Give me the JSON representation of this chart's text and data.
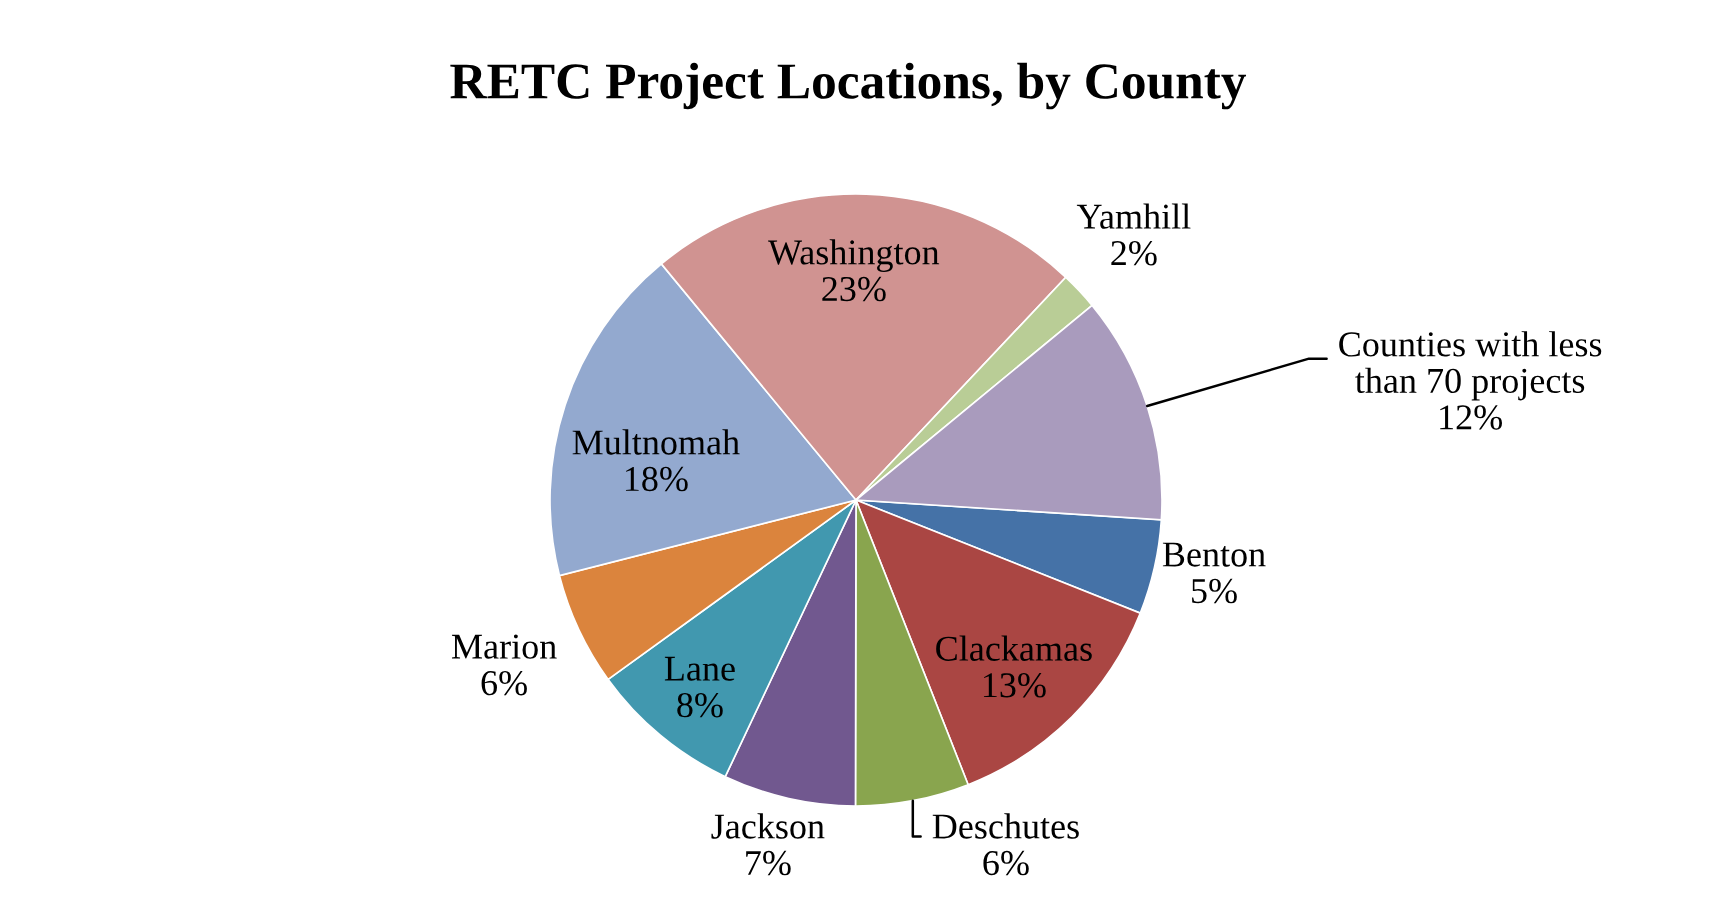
{
  "chart_data": {
    "type": "pie",
    "title": "RETC Project Locations, by County",
    "categories": [
      "Benton",
      "Clackamas",
      "Deschutes",
      "Jackson",
      "Lane",
      "Marion",
      "Multnomah",
      "Washington",
      "Yamhill",
      "Counties with less\nthan 70 projects"
    ],
    "values": [
      5,
      13,
      6,
      7,
      8,
      6,
      18,
      23,
      2,
      12
    ],
    "value_labels": [
      "5%",
      "13%",
      "6%",
      "7%",
      "8%",
      "6%",
      "18%",
      "23%",
      "2%",
      "12%"
    ],
    "colors": [
      "#4572a7",
      "#aa4643",
      "#89a54e",
      "#71588f",
      "#4198af",
      "#db843d",
      "#93a9cf",
      "#d09391",
      "#b9cd96",
      "#a99bbd"
    ]
  }
}
